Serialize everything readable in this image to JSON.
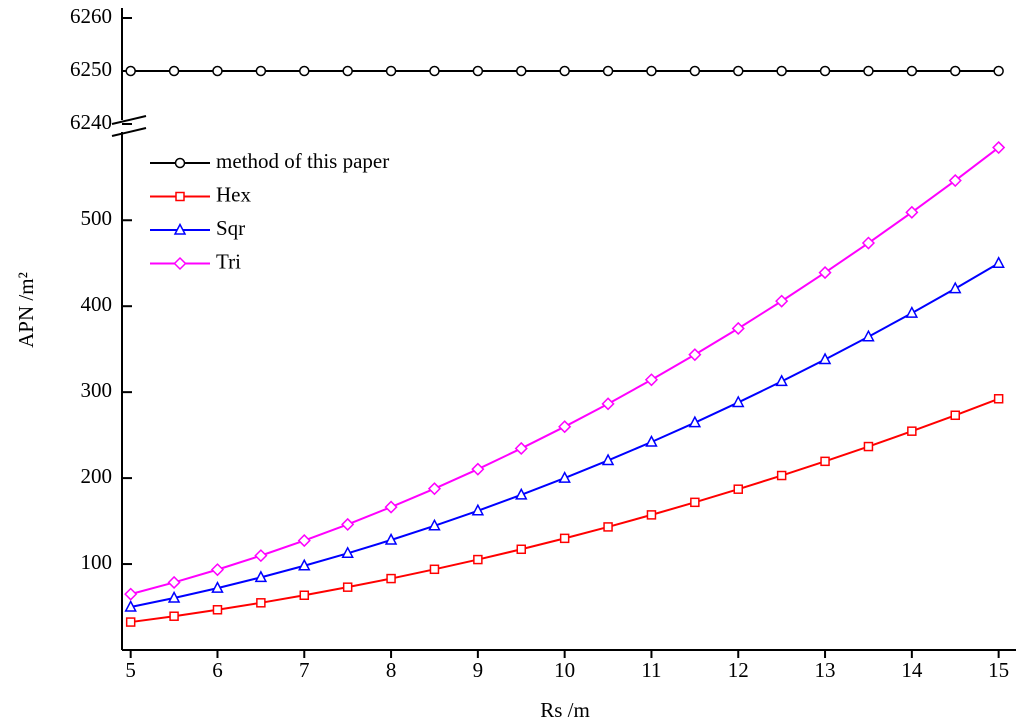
{
  "chart_data": {
    "type": "line",
    "x_label": "Rs /m",
    "y_label": "APN /m²",
    "x": [
      5,
      5.5,
      6,
      6.5,
      7,
      7.5,
      8,
      8.5,
      9,
      9.5,
      10,
      10.5,
      11,
      11.5,
      12,
      12.5,
      13,
      13.5,
      14,
      14.5,
      15
    ],
    "xlim": [
      4.9,
      15.2
    ],
    "xticks": [
      5,
      6,
      7,
      8,
      9,
      10,
      11,
      12,
      13,
      14,
      15
    ],
    "ylim": [
      0,
      605
    ],
    "yticks": [
      100,
      200,
      300,
      400,
      500
    ],
    "upper_ylim": [
      6240,
      6260
    ],
    "upper_yticks": [
      6240,
      6250,
      6260
    ],
    "legend": "upper left",
    "series": [
      {
        "name": "method of this paper",
        "color": "#000000",
        "marker": "circle",
        "panel": "upper",
        "values": [
          6250,
          6250,
          6250,
          6250,
          6250,
          6250,
          6250,
          6250,
          6250,
          6250,
          6250,
          6250,
          6250,
          6250,
          6250,
          6250,
          6250,
          6250,
          6250,
          6250,
          6250
        ]
      },
      {
        "name": "Hex",
        "color": "#ff0000",
        "marker": "square",
        "panel": "lower",
        "values": [
          32.5,
          39.3,
          46.8,
          54.9,
          63.7,
          73.1,
          83.1,
          93.9,
          105.2,
          117.2,
          129.9,
          143.2,
          157.2,
          171.8,
          187.1,
          203.0,
          219.5,
          236.7,
          254.6,
          273.1,
          292.3
        ]
      },
      {
        "name": "Sqr",
        "color": "#0000ff",
        "marker": "triangle",
        "panel": "lower",
        "values": [
          50,
          60.5,
          72,
          84.5,
          98,
          112.5,
          128,
          144.5,
          162,
          180.5,
          200,
          220.5,
          242,
          264.5,
          288,
          312.5,
          338,
          364.5,
          392,
          420.5,
          450
        ]
      },
      {
        "name": "Tri",
        "color": "#ff00ff",
        "marker": "diamond",
        "panel": "lower",
        "values": [
          65.0,
          78.6,
          93.5,
          109.8,
          127.3,
          146.1,
          166.3,
          187.7,
          210.4,
          234.5,
          259.8,
          286.4,
          314.4,
          343.6,
          374.1,
          405.9,
          439.1,
          473.5,
          509.2,
          546.2,
          584.6
        ]
      }
    ]
  }
}
